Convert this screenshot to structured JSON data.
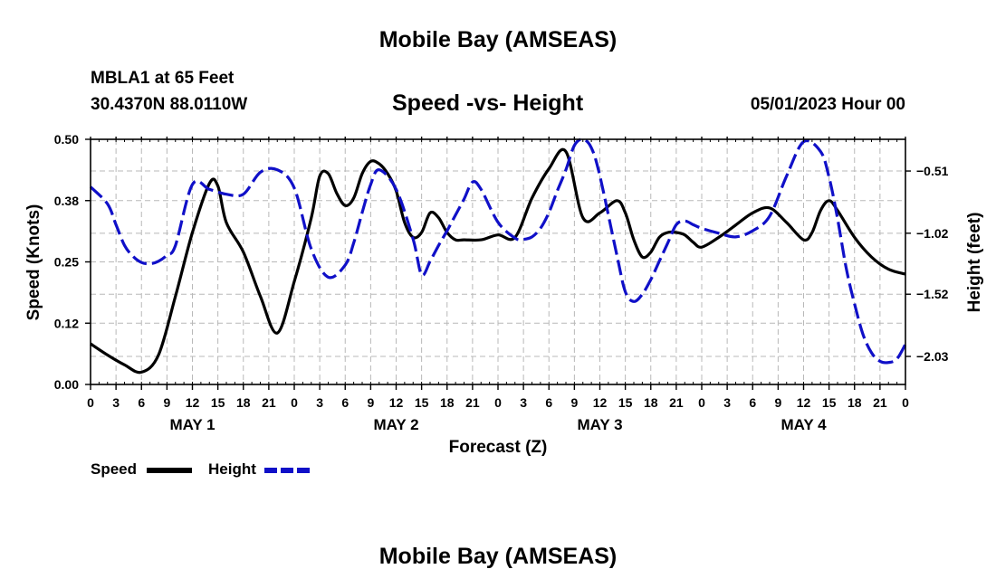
{
  "header": {
    "title": "Mobile Bay (AMSEAS)",
    "station": "MBLA1 at 65 Feet",
    "coords": "30.4370N  88.0110W",
    "subtitle": "Speed -vs- Height",
    "datetime": "05/01/2023 Hour 00"
  },
  "footer": {
    "title": "Mobile Bay (AMSEAS)"
  },
  "legend": {
    "speed_label": "Speed",
    "height_label": "Height"
  },
  "colors": {
    "speed": "#000000",
    "height": "#1010c8",
    "grid": "#b8b8b8"
  },
  "chart_data": {
    "type": "line",
    "title": "Speed -vs- Height",
    "xlabel": "Forecast (Z)",
    "ylabel_left": "Speed (Knots)",
    "ylabel_right": "Height (feet)",
    "xlim": [
      0,
      96
    ],
    "x_ticks": [
      0,
      3,
      6,
      9,
      12,
      15,
      18,
      21,
      24,
      27,
      30,
      33,
      36,
      39,
      42,
      45,
      48,
      51,
      54,
      57,
      60,
      63,
      66,
      69,
      72,
      75,
      78,
      81,
      84,
      87,
      90,
      93,
      96
    ],
    "x_tick_labels": [
      "0",
      "3",
      "6",
      "9",
      "12",
      "15",
      "18",
      "21",
      "0",
      "3",
      "6",
      "9",
      "12",
      "15",
      "18",
      "21",
      "0",
      "3",
      "6",
      "9",
      "12",
      "15",
      "18",
      "21",
      "0",
      "3",
      "6",
      "9",
      "12",
      "15",
      "18",
      "21",
      "0"
    ],
    "day_labels": [
      {
        "label": "MAY 1",
        "x": 12
      },
      {
        "label": "MAY 2",
        "x": 36
      },
      {
        "label": "MAY 3",
        "x": 60
      },
      {
        "label": "MAY 4",
        "x": 84
      }
    ],
    "ylim_left": [
      0,
      0.5
    ],
    "y_ticks_left": [
      0,
      0.125,
      0.25,
      0.375,
      0.5
    ],
    "y_tick_labels_left": [
      "0.00",
      "0.12",
      "0.25",
      "0.38",
      "0.50"
    ],
    "ylim_right": [
      -2.26,
      -0.25
    ],
    "y_ticks_right": [
      -2.03,
      -1.52,
      -1.02,
      -0.51
    ],
    "y_tick_labels_right": [
      "−2.03",
      "−1.52",
      "−1.02",
      "−0.51"
    ],
    "grid": true,
    "series": [
      {
        "name": "Speed",
        "axis": "left",
        "style": "solid",
        "x": [
          0,
          2,
          4,
          6,
          8,
          10,
          12,
          14,
          15,
          16,
          18,
          20,
          22,
          24,
          26,
          27,
          28,
          29,
          30,
          31,
          32,
          33,
          34,
          35,
          36,
          37,
          38,
          39,
          40,
          41,
          42,
          43,
          44,
          46,
          48,
          50,
          52,
          54,
          56,
          58,
          60,
          62,
          63,
          64,
          65,
          66,
          67,
          68,
          69,
          70,
          71,
          72,
          74,
          76,
          78,
          80,
          82,
          84,
          85,
          86,
          87,
          88,
          90,
          92,
          94,
          96
        ],
        "y": [
          0.083,
          0.06,
          0.04,
          0.025,
          0.06,
          0.18,
          0.31,
          0.41,
          0.405,
          0.33,
          0.27,
          0.18,
          0.105,
          0.21,
          0.34,
          0.425,
          0.43,
          0.39,
          0.365,
          0.38,
          0.43,
          0.455,
          0.45,
          0.43,
          0.395,
          0.33,
          0.3,
          0.31,
          0.35,
          0.34,
          0.31,
          0.295,
          0.295,
          0.295,
          0.305,
          0.3,
          0.38,
          0.44,
          0.475,
          0.34,
          0.35,
          0.375,
          0.35,
          0.295,
          0.26,
          0.27,
          0.3,
          0.31,
          0.31,
          0.305,
          0.29,
          0.28,
          0.3,
          0.325,
          0.35,
          0.36,
          0.33,
          0.295,
          0.31,
          0.355,
          0.375,
          0.355,
          0.3,
          0.26,
          0.235,
          0.225
        ]
      },
      {
        "name": "Height",
        "axis": "right",
        "style": "dashed",
        "x": [
          0,
          2,
          3,
          4,
          5,
          6,
          7,
          8,
          9,
          10,
          12,
          14,
          16,
          18,
          20,
          22,
          24,
          26,
          28,
          30,
          31,
          32,
          33,
          34,
          36,
          38,
          39,
          40,
          41,
          42,
          43,
          44,
          45,
          46,
          48,
          50,
          51,
          52,
          53,
          54,
          55,
          56,
          57,
          58,
          59,
          60,
          62,
          63,
          64,
          65,
          66,
          67,
          68,
          69,
          70,
          71,
          72,
          74,
          76,
          78,
          80,
          82,
          84,
          86,
          87,
          88,
          89,
          90,
          91,
          92,
          93,
          94,
          95,
          96
        ],
        "y": [
          -0.64,
          -0.78,
          -0.95,
          -1.12,
          -1.21,
          -1.26,
          -1.27,
          -1.25,
          -1.2,
          -1.12,
          -0.62,
          -0.66,
          -0.7,
          -0.7,
          -0.52,
          -0.5,
          -0.65,
          -1.15,
          -1.38,
          -1.28,
          -1.1,
          -0.85,
          -0.62,
          -0.5,
          -0.66,
          -1.07,
          -1.36,
          -1.25,
          -1.12,
          -1.0,
          -0.87,
          -0.74,
          -0.6,
          -0.66,
          -0.93,
          -1.06,
          -1.07,
          -1.05,
          -0.98,
          -0.85,
          -0.67,
          -0.5,
          -0.3,
          -0.25,
          -0.32,
          -0.55,
          -1.2,
          -1.5,
          -1.58,
          -1.52,
          -1.4,
          -1.25,
          -1.1,
          -0.95,
          -0.92,
          -0.95,
          -0.98,
          -1.02,
          -1.05,
          -1.0,
          -0.88,
          -0.55,
          -0.27,
          -0.35,
          -0.56,
          -0.9,
          -1.3,
          -1.6,
          -1.85,
          -2.0,
          -2.07,
          -2.08,
          -2.05,
          -1.93
        ]
      }
    ]
  }
}
